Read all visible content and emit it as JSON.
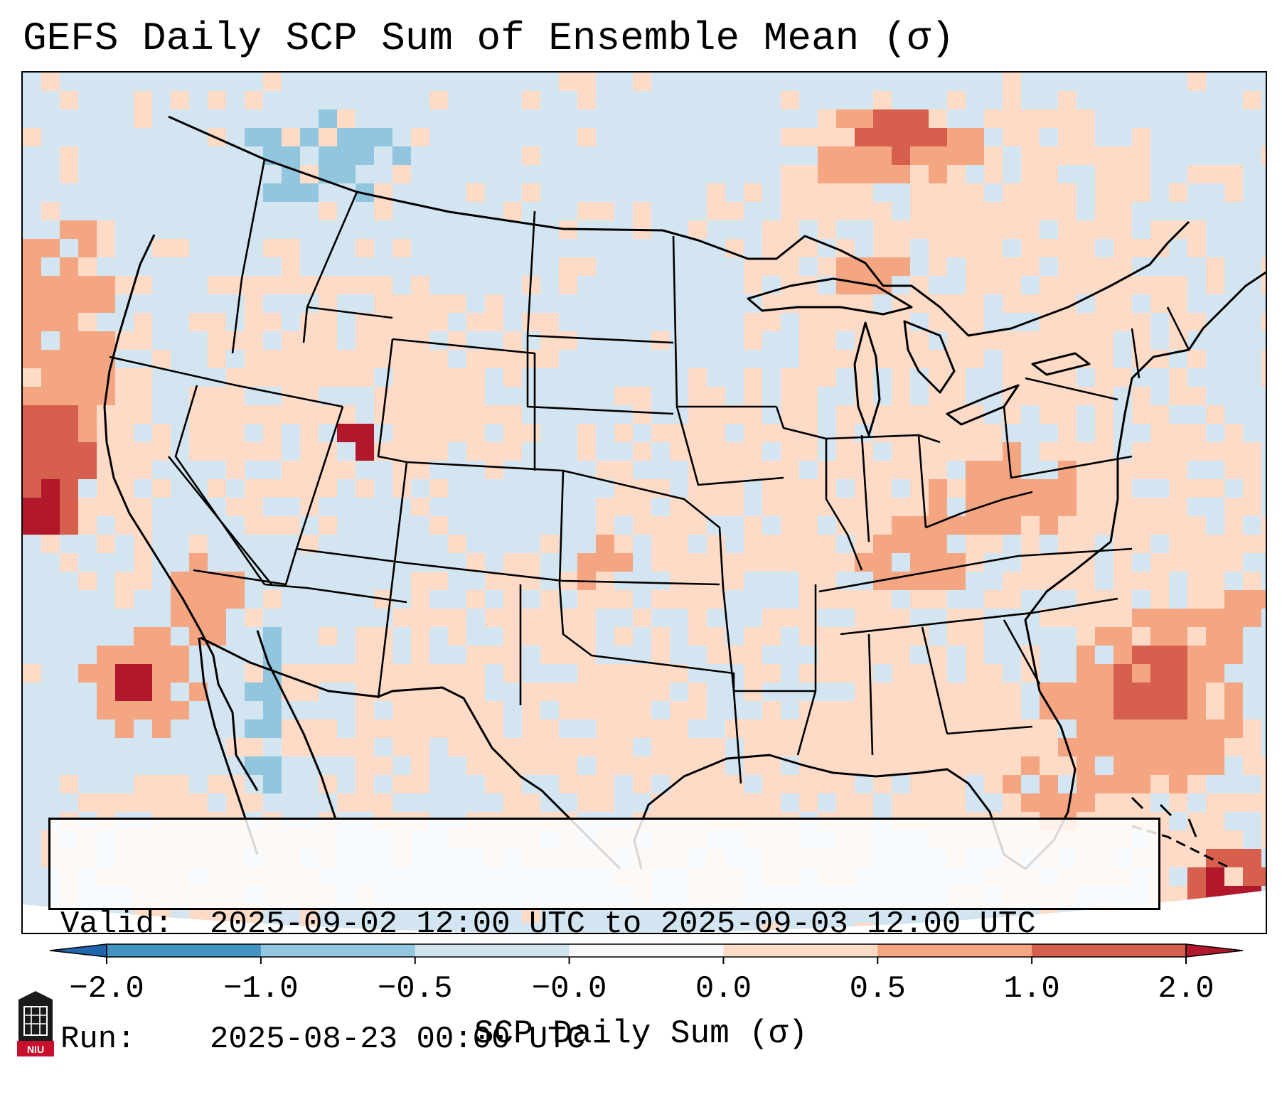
{
  "title": "GEFS Daily SCP Sum of Ensemble Mean (σ)",
  "info": {
    "valid_label": "Valid:",
    "valid_value": "2025-09-02 12:00 UTC to 2025-09-03 12:00 UTC",
    "run_label": "Run:",
    "run_value": "2025-08-23 00:00 UTC"
  },
  "colorbar": {
    "label": "SCP Daily Sum (σ)",
    "ticks": [
      "−2.0",
      "−1.0",
      "−0.5",
      "−0.0",
      "0.0",
      "0.5",
      "1.0",
      "2.0"
    ],
    "colors": [
      "#4393c3",
      "#92c5de",
      "#d1e5f0",
      "#f7f7f7",
      "#fddbc7",
      "#f4a582",
      "#d6604d"
    ],
    "under_color": "#2166ac",
    "over_color": "#b2182b"
  },
  "map": {
    "background_color": "#d2e5f0",
    "region": "Continental United States",
    "field_colors": {
      "neg_strong": "#92c5de",
      "pos_light": "#fddbc7",
      "pos_mid": "#f4a582",
      "pos_strong": "#d6604d",
      "pos_extreme": "#b2182b"
    }
  },
  "logo": {
    "text": "NIU",
    "color": "#c8102e"
  }
}
